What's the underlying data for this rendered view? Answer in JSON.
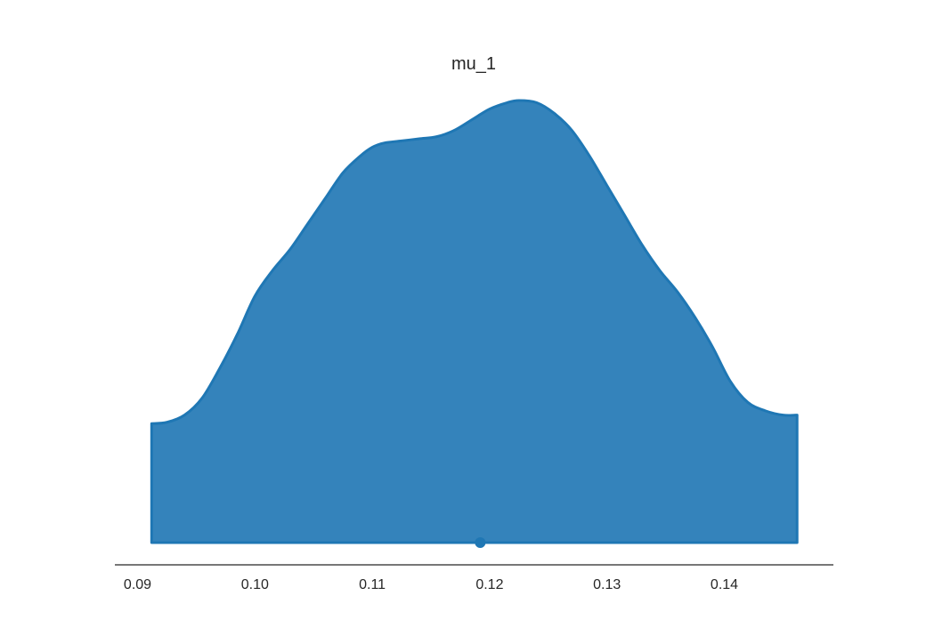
{
  "chart_data": {
    "type": "area",
    "title": "mu_1",
    "xlabel": "",
    "ylabel": "",
    "xlim": [
      0.0905,
      0.1465
    ],
    "grid": false,
    "x_ticks": [
      0.09,
      0.1,
      0.11,
      0.12,
      0.13,
      0.14
    ],
    "x_tick_labels": [
      "0.09",
      "0.10",
      "0.11",
      "0.12",
      "0.13",
      "0.14"
    ],
    "point_estimate": 0.1192,
    "series": [
      {
        "fill_color": "#3483BB",
        "line_color": "#1F77B4",
        "x": [
          0.0912,
          0.0925,
          0.094,
          0.0955,
          0.097,
          0.0985,
          0.1,
          0.1015,
          0.103,
          0.1045,
          0.106,
          0.1075,
          0.109,
          0.11,
          0.111,
          0.1125,
          0.114,
          0.1155,
          0.117,
          0.1185,
          0.12,
          0.1215,
          0.1225,
          0.124,
          0.1255,
          0.127,
          0.1285,
          0.13,
          0.1315,
          0.133,
          0.1345,
          0.136,
          0.1375,
          0.139,
          0.1405,
          0.142,
          0.1435,
          0.145,
          0.1462
        ],
        "y": [
          0.28,
          0.283,
          0.3,
          0.34,
          0.41,
          0.49,
          0.58,
          0.64,
          0.69,
          0.75,
          0.81,
          0.87,
          0.91,
          0.93,
          0.94,
          0.945,
          0.95,
          0.955,
          0.97,
          0.995,
          1.02,
          1.035,
          1.04,
          1.035,
          1.01,
          0.97,
          0.91,
          0.84,
          0.77,
          0.7,
          0.64,
          0.59,
          0.53,
          0.46,
          0.38,
          0.33,
          0.31,
          0.3,
          0.3
        ]
      }
    ]
  }
}
